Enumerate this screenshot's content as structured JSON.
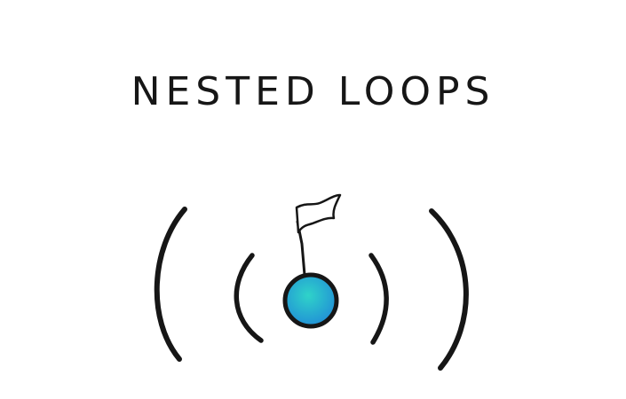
{
  "title": "NESTED LOOPS",
  "colors": {
    "ink": "#161616",
    "ball_light": "#2fd3c9",
    "ball_dark": "#1f86d8",
    "background": "#ffffff"
  },
  "icons": {
    "ball": "ball-with-flag-icon",
    "inner_brackets": "inner-bracket-icon",
    "outer_brackets": "outer-bracket-icon"
  }
}
